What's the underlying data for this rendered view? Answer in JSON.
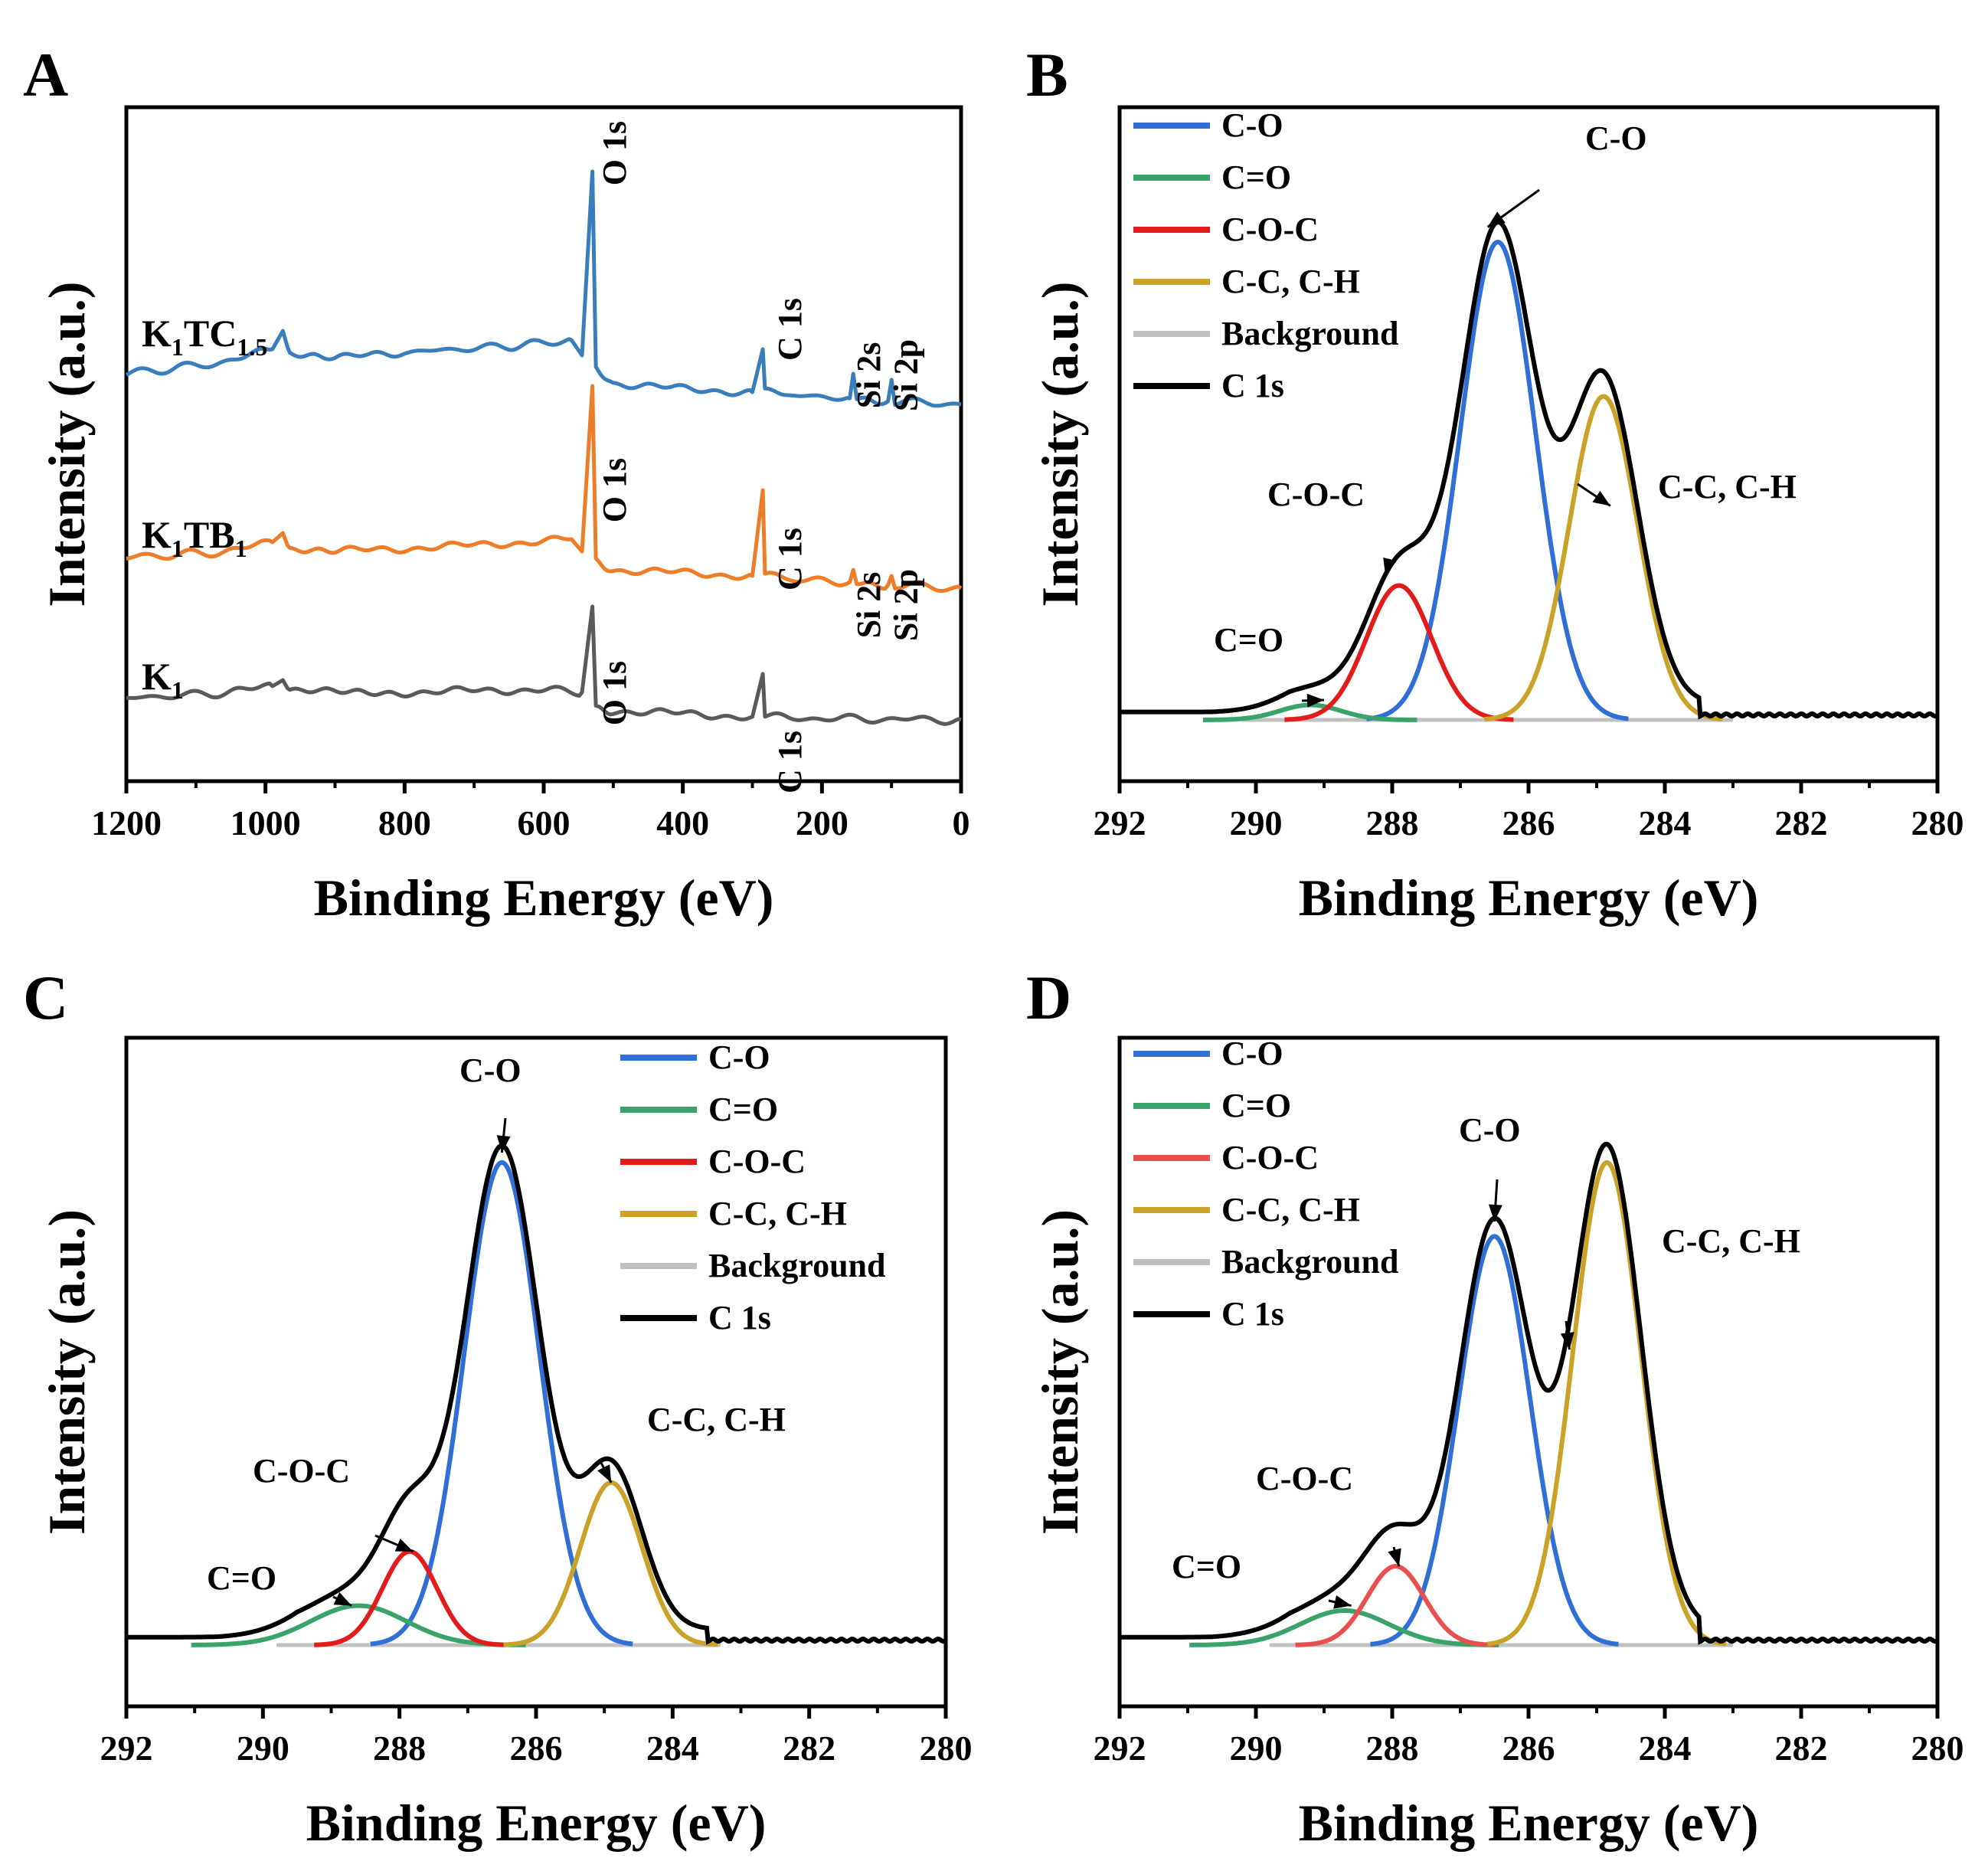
{
  "figure": {
    "id": "xps-figure"
  },
  "chart_data": [
    {
      "panel": "A",
      "type": "line",
      "title": "",
      "xlabel": "Binding Energy (eV)",
      "ylabel": "Intensity (a.u.)",
      "xlim": [
        1200,
        0
      ],
      "xticks": [
        1200,
        1000,
        800,
        600,
        400,
        200,
        0
      ],
      "ylim": [
        0,
        100
      ],
      "series": [
        {
          "name": "K1TC1.5",
          "label": {
            "main": "K",
            "sub1": "1",
            "mid": "TC",
            "sub2": "1.5"
          },
          "color": "#3a7dbb",
          "baseline": 64,
          "points": [
            [
              1200,
              59
            ],
            [
              1050,
              61
            ],
            [
              990,
              63
            ],
            [
              975,
              66
            ],
            [
              965,
              62
            ],
            [
              900,
              61.5
            ],
            [
              800,
              62.5
            ],
            [
              650,
              63.5
            ],
            [
              560,
              64.5
            ],
            [
              545,
              62
            ],
            [
              530,
              92
            ],
            [
              525,
              60
            ],
            [
              500,
              57.5
            ],
            [
              400,
              56.5
            ],
            [
              300,
              56
            ],
            [
              285,
              63
            ],
            [
              282,
              56
            ],
            [
              250,
              55.5
            ],
            [
              160,
              55
            ],
            [
              155,
              59
            ],
            [
              150,
              55
            ],
            [
              105,
              54.5
            ],
            [
              100,
              58
            ],
            [
              95,
              54.5
            ],
            [
              0,
              54
            ]
          ],
          "peaks": [
            {
              "x": 532,
              "label": "O 1s"
            },
            {
              "x": 285,
              "label": "C 1s"
            },
            {
              "x": 155,
              "label": "Si 2s"
            },
            {
              "x": 102,
              "label": "Si 2p"
            }
          ]
        },
        {
          "name": "K1TB1",
          "label": {
            "main": "K",
            "sub1": "1",
            "mid": "TB",
            "sub2": "1"
          },
          "color": "#ee7d2a",
          "points": [
            [
              1200,
              29
            ],
            [
              1050,
              30
            ],
            [
              990,
              31.5
            ],
            [
              975,
              33
            ],
            [
              965,
              30
            ],
            [
              900,
              30
            ],
            [
              700,
              31
            ],
            [
              560,
              32
            ],
            [
              545,
              30
            ],
            [
              530,
              57
            ],
            [
              525,
              28.5
            ],
            [
              500,
              27
            ],
            [
              300,
              26
            ],
            [
              285,
              40
            ],
            [
              282,
              26
            ],
            [
              250,
              25.5
            ],
            [
              160,
              25
            ],
            [
              155,
              27
            ],
            [
              150,
              25
            ],
            [
              105,
              24.5
            ],
            [
              100,
              26
            ],
            [
              95,
              24.5
            ],
            [
              0,
              24
            ]
          ],
          "peaks": [
            {
              "x": 532,
              "label": "O 1s"
            },
            {
              "x": 285,
              "label": "C 1s"
            },
            {
              "x": 155,
              "label": "Si 2s"
            },
            {
              "x": 102,
              "label": "Si 2p"
            }
          ]
        },
        {
          "name": "K1",
          "label": {
            "main": "K",
            "sub1": "1",
            "mid": "",
            "sub2": ""
          },
          "color": "#5a5a5a",
          "points": [
            [
              1200,
              6
            ],
            [
              1050,
              7
            ],
            [
              990,
              8
            ],
            [
              975,
              9
            ],
            [
              965,
              7
            ],
            [
              800,
              7
            ],
            [
              600,
              7.5
            ],
            [
              545,
              7
            ],
            [
              530,
              21
            ],
            [
              525,
              4.5
            ],
            [
              500,
              4
            ],
            [
              300,
              3
            ],
            [
              285,
              10
            ],
            [
              282,
              3
            ],
            [
              250,
              2.8
            ],
            [
              0,
              2.5
            ]
          ],
          "peaks": [
            {
              "x": 532,
              "label": "O 1s"
            },
            {
              "x": 285,
              "label": "C 1s"
            }
          ]
        }
      ]
    },
    {
      "panel": "B",
      "type": "line",
      "title": "",
      "xlabel": "Binding Energy (eV)",
      "ylabel": "Intensity (a.u.)",
      "xlim": [
        292,
        280
      ],
      "xticks": [
        292,
        290,
        288,
        286,
        284,
        282,
        280
      ],
      "ylim": [
        -10,
        110
      ],
      "baseline": 0,
      "components": [
        {
          "name": "C-O",
          "color": "#2f6fd6",
          "center": 286.45,
          "height": 96,
          "sigma": 0.55
        },
        {
          "name": "C=O",
          "color": "#3aa36a",
          "center": 289.2,
          "height": 3,
          "sigma": 0.45
        },
        {
          "name": "C-O-C",
          "color": "#e31b1b",
          "center": 287.9,
          "height": 27,
          "sigma": 0.48
        },
        {
          "name": "C-C, C-H",
          "color": "#c9a227",
          "center": 284.9,
          "height": 65,
          "sigma": 0.5
        }
      ],
      "background": {
        "name": "Background",
        "color": "#c0c0c0",
        "from": 290.2,
        "to": 283.0
      },
      "envelope": {
        "name": "C 1s",
        "color": "#000000",
        "tail_from": 283.9,
        "tail_to": 280.0
      },
      "legend": [
        "C-O",
        "C=O",
        "C-O-C",
        "C-C, C-H",
        "Background",
        "C 1s"
      ],
      "annotations": [
        {
          "text": "C-O",
          "target_x": 286.6,
          "target_y": 99
        },
        {
          "text": "C-C, C-H",
          "target_x": 284.8,
          "target_y": 43
        },
        {
          "text": "C-O-C",
          "target_x": 288.1,
          "target_y": 29
        },
        {
          "text": "C=O",
          "target_x": 289.0,
          "target_y": 4
        }
      ]
    },
    {
      "panel": "C",
      "type": "line",
      "title": "",
      "xlabel": "Binding Energy (eV)",
      "ylabel": "Intensity (a.u.)",
      "xlim": [
        292,
        280
      ],
      "xticks": [
        292,
        290,
        288,
        286,
        284,
        282,
        280
      ],
      "ylim": [
        -10,
        110
      ],
      "baseline": 0,
      "components": [
        {
          "name": "C-O",
          "color": "#2f6fd6",
          "center": 286.5,
          "height": 98,
          "sigma": 0.55
        },
        {
          "name": "C=O",
          "color": "#3aa36a",
          "center": 288.6,
          "height": 8,
          "sigma": 0.7
        },
        {
          "name": "C-O-C",
          "color": "#e31b1b",
          "center": 287.85,
          "height": 19,
          "sigma": 0.4
        },
        {
          "name": "C-C, C-H",
          "color": "#c9a227",
          "center": 284.9,
          "height": 33,
          "sigma": 0.45
        }
      ],
      "background": {
        "name": "Background",
        "color": "#c0c0c0",
        "from": 289.8,
        "to": 283.3
      },
      "envelope": {
        "name": "C 1s",
        "color": "#000000",
        "tail_from": 283.9,
        "tail_to": 280.0
      },
      "legend": [
        "C-O",
        "C=O",
        "C-O-C",
        "C-C, C-H",
        "Background",
        "C 1s"
      ],
      "annotations": [
        {
          "text": "C-O",
          "target_x": 286.5,
          "target_y": 100
        },
        {
          "text": "C-C, C-H",
          "target_x": 284.9,
          "target_y": 33
        },
        {
          "text": "C-O-C",
          "target_x": 287.8,
          "target_y": 19
        },
        {
          "text": "C=O",
          "target_x": 288.7,
          "target_y": 8
        }
      ]
    },
    {
      "panel": "D",
      "type": "line",
      "title": "",
      "xlabel": "Binding Energy (eV)",
      "ylabel": "Intensity (a.u.)",
      "xlim": [
        292,
        280
      ],
      "xticks": [
        292,
        290,
        288,
        286,
        284,
        282,
        280
      ],
      "ylim": [
        -10,
        110
      ],
      "baseline": 0,
      "components": [
        {
          "name": "C-O",
          "color": "#2f6fd6",
          "center": 286.5,
          "height": 83,
          "sigma": 0.52
        },
        {
          "name": "C=O",
          "color": "#3aa36a",
          "center": 288.7,
          "height": 7,
          "sigma": 0.65
        },
        {
          "name": "C-O-C",
          "color": "#e85050",
          "center": 287.95,
          "height": 16,
          "sigma": 0.42
        },
        {
          "name": "C-C, C-H",
          "color": "#c9a227",
          "center": 284.85,
          "height": 98,
          "sigma": 0.5
        }
      ],
      "background": {
        "name": "Background",
        "color": "#c0c0c0",
        "from": 289.8,
        "to": 283.0
      },
      "envelope": {
        "name": "C 1s",
        "color": "#000000",
        "tail_from": 283.9,
        "tail_to": 280.0
      },
      "legend": [
        "C-O",
        "C=O",
        "C-O-C",
        "C-C, C-H",
        "Background",
        "C 1s"
      ],
      "annotations": [
        {
          "text": "C-O",
          "target_x": 286.5,
          "target_y": 86
        },
        {
          "text": "C-C, C-H",
          "target_x": 285.4,
          "target_y": 60
        },
        {
          "text": "C-O-C",
          "target_x": 287.9,
          "target_y": 16
        },
        {
          "text": "C=O",
          "target_x": 288.6,
          "target_y": 8
        }
      ]
    }
  ]
}
